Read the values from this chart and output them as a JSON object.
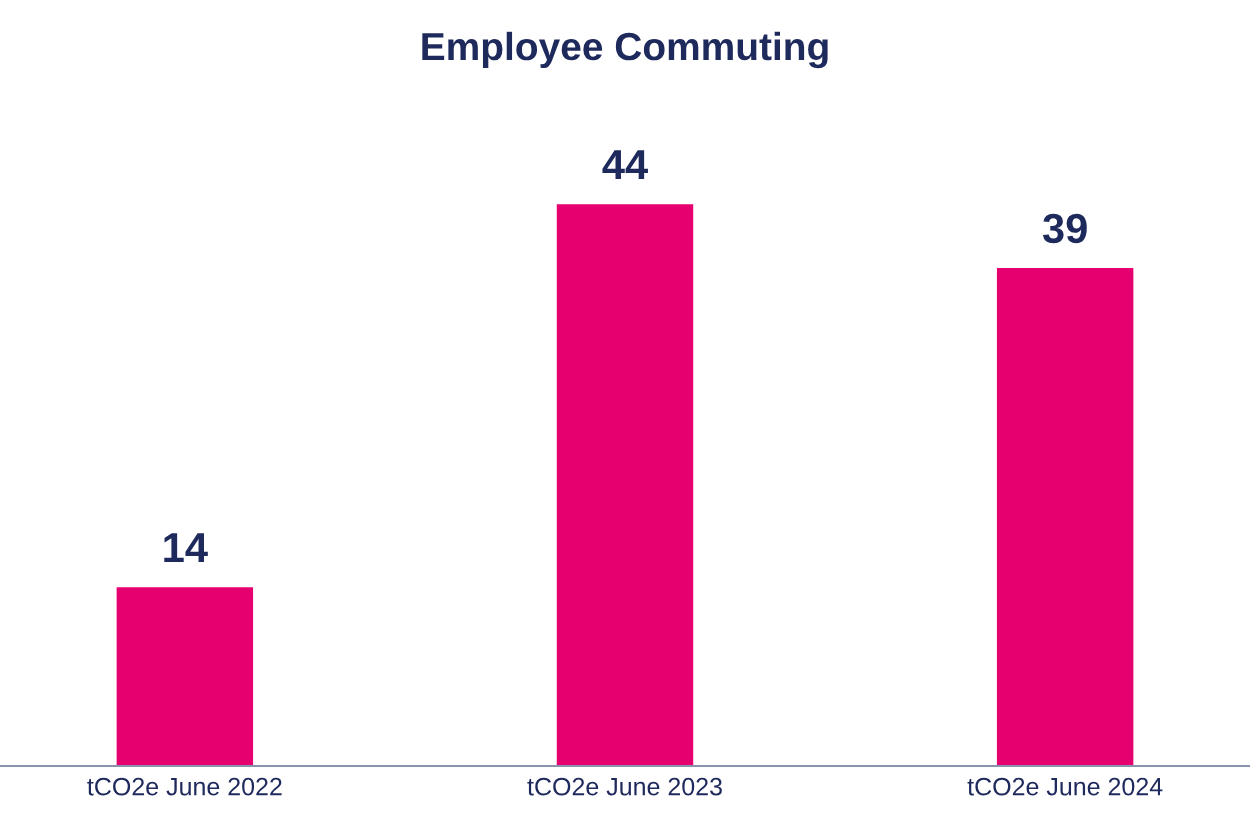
{
  "chart_data": {
    "type": "bar",
    "title": "Employee Commuting",
    "categories": [
      "tCO2e June 2022",
      "tCO2e June 2023",
      "tCO2e June 2024"
    ],
    "values": [
      14,
      44,
      39
    ],
    "color": "#e6006f",
    "data_labels": true,
    "grid": false,
    "legend": false
  }
}
